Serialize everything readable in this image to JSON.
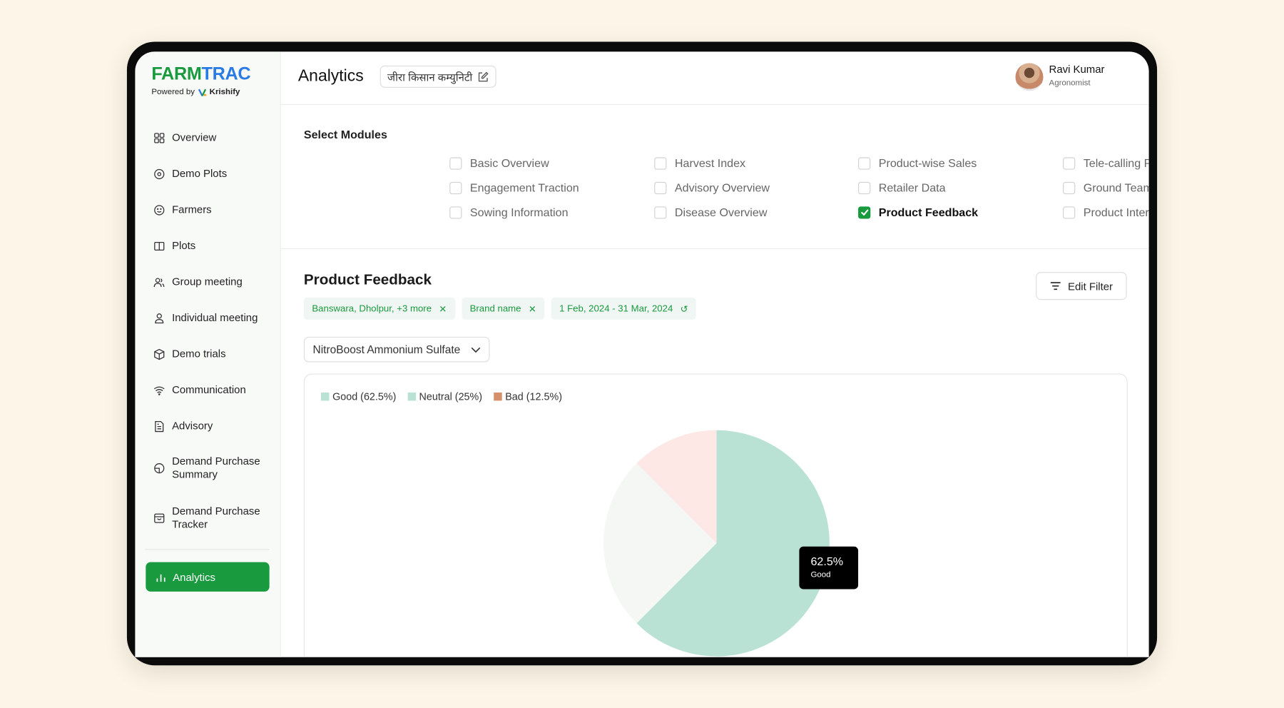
{
  "brand": {
    "name_part1": "FARM",
    "name_part2": "TRAC",
    "powered_by": "Powered by",
    "partner": "Krishify"
  },
  "sidebar": {
    "items": [
      {
        "label": "Overview",
        "icon": "grid-icon"
      },
      {
        "label": "Demo Plots",
        "icon": "eye-icon"
      },
      {
        "label": "Farmers",
        "icon": "smile-icon"
      },
      {
        "label": "Plots",
        "icon": "columns-icon"
      },
      {
        "label": "Group meeting",
        "icon": "users-icon"
      },
      {
        "label": "Individual meeting",
        "icon": "user-icon"
      },
      {
        "label": "Demo trials",
        "icon": "box-icon"
      },
      {
        "label": "Communication",
        "icon": "wifi-icon"
      },
      {
        "label": "Advisory",
        "icon": "document-icon"
      },
      {
        "label": "Demand Purchase Summary",
        "icon": "pie-icon"
      },
      {
        "label": "Demand Purchase Tracker",
        "icon": "bag-icon"
      }
    ],
    "active": {
      "label": "Analytics",
      "icon": "bar-chart-icon"
    }
  },
  "header": {
    "title": "Analytics",
    "community": "जीरा किसान कम्युनिटी",
    "user": {
      "name": "Ravi Kumar",
      "role": "Agronomist"
    }
  },
  "modules": {
    "title": "Select Modules",
    "items": [
      {
        "label": "Basic Overview",
        "checked": false
      },
      {
        "label": "Harvest Index",
        "checked": false
      },
      {
        "label": "Product-wise Sales",
        "checked": false
      },
      {
        "label": "Tele-calling Performance",
        "checked": false
      },
      {
        "label": "Engagement Traction",
        "checked": false
      },
      {
        "label": "Advisory Overview",
        "checked": false
      },
      {
        "label": "Retailer Data",
        "checked": false
      },
      {
        "label": "Ground Team Performance",
        "checked": false
      },
      {
        "label": "Sowing Information",
        "checked": false
      },
      {
        "label": "Disease Overview",
        "checked": false
      },
      {
        "label": "Product Feedback",
        "checked": true
      },
      {
        "label": "Product Interest",
        "checked": false
      }
    ]
  },
  "feedback": {
    "title": "Product Feedback",
    "edit_filter": "Edit Filter",
    "filters": {
      "location": "Banswara, Dholpur, +3 more",
      "brand": "Brand name",
      "date": "1 Feb, 2024 - 31 Mar, 2024"
    },
    "product": "NitroBoost Ammonium Sulfate"
  },
  "chart_data": {
    "type": "pie",
    "legend": [
      "Good (62.5%)",
      "Neutral (25%)",
      "Bad (12.5%)"
    ],
    "categories": [
      "Good",
      "Neutral",
      "Bad"
    ],
    "values": [
      62.5,
      25,
      12.5
    ],
    "legend_colors": [
      "#b9e2d5",
      "#b9e2d5",
      "#d4916c"
    ],
    "slice_colors": [
      "#b9e2d5",
      "#f5f7f5",
      "#fde8e6"
    ],
    "legend_position": "top-left",
    "tooltip": {
      "value": "62.5%",
      "label": "Good"
    }
  },
  "colors": {
    "accent": "#1a9a3e",
    "brand_blue": "#2a7be4"
  }
}
